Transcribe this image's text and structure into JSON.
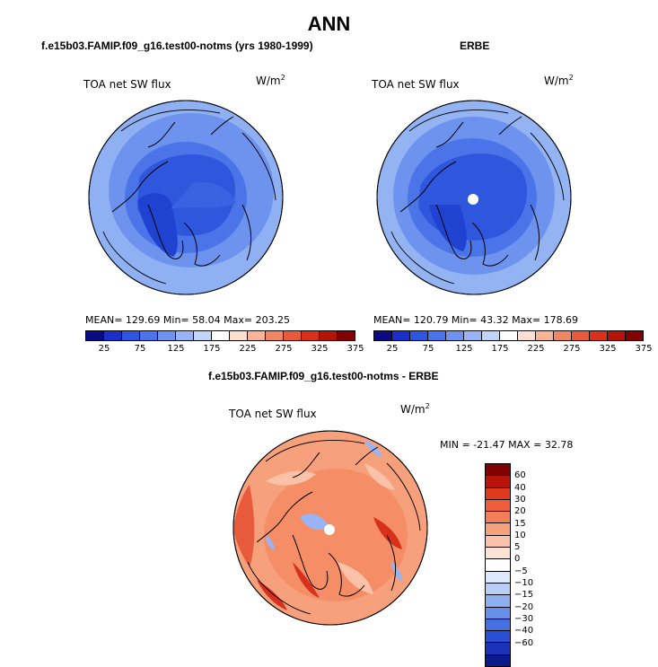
{
  "title": "ANN",
  "panels": [
    {
      "title": "f.e15b03.FAMIP.f09_g16.test00-notms (yrs 1980-1999)",
      "variable": "TOA net SW flux",
      "units_base": "W/m",
      "units_exp": "2",
      "stats": "MEAN= 129.69   Min=   58.04   Max= 203.25"
    },
    {
      "title": "ERBE",
      "variable": "TOA net SW flux",
      "units_base": "W/m",
      "units_exp": "2",
      "stats": "MEAN= 120.79   Min=   43.32   Max= 178.69"
    },
    {
      "title": "f.e15b03.FAMIP.f09_g16.test00-notms - ERBE",
      "variable": "TOA net SW flux",
      "units_base": "W/m",
      "units_exp": "2",
      "stats": "MIN = -21.47  MAX =   32.78"
    }
  ],
  "abs_colorbar": {
    "labels": [
      "25",
      "75",
      "125",
      "175",
      "225",
      "275",
      "325",
      "375"
    ],
    "colors": [
      "#0a0a82",
      "#1a2ec8",
      "#2f56e0",
      "#4b73ec",
      "#6f93f2",
      "#98b4f6",
      "#c2d5fa",
      "#ffffff",
      "#fde0cf",
      "#f7b496",
      "#f08764",
      "#e85a3c",
      "#d9301c",
      "#b41408",
      "#820000"
    ]
  },
  "diff_colorbar": {
    "labels": [
      "60",
      "40",
      "30",
      "20",
      "15",
      "10",
      "5",
      "0",
      "−5",
      "−10",
      "−15",
      "−20",
      "−30",
      "−40",
      "−60"
    ],
    "colors": [
      "#800000",
      "#b8140a",
      "#de3a1e",
      "#ee5e3a",
      "#f47e58",
      "#f7a07c",
      "#fac2a8",
      "#fde3d6",
      "#ffffff",
      "#dce8fb",
      "#b8cef6",
      "#8fb0f0",
      "#6890ea",
      "#4470e2",
      "#2a4fd6",
      "#1a33b8",
      "#0a1a8c"
    ]
  }
}
